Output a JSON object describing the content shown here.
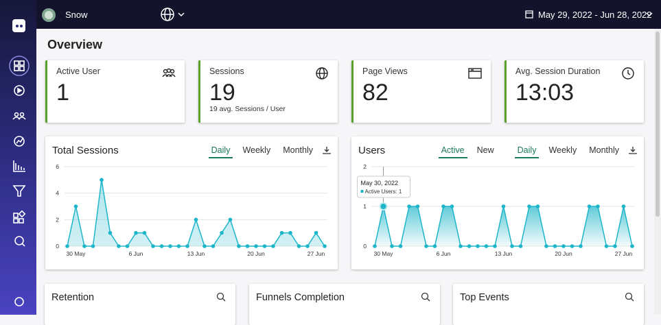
{
  "topbar": {
    "user": "Snow",
    "date_range": "May 29, 2022 - Jun 28, 2022"
  },
  "page_title": "Overview",
  "stats": [
    {
      "label": "Active User",
      "value": 1
    },
    {
      "label": "Sessions",
      "value": 19,
      "sub": "19 avg. Sessions / User"
    },
    {
      "label": "Page Views",
      "value": 82
    },
    {
      "label": "Avg. Session Duration",
      "value": "13:03"
    }
  ],
  "chart_data": [
    {
      "type": "area",
      "title": "Total Sessions",
      "tabs": [
        "Daily",
        "Weekly",
        "Monthly"
      ],
      "color": "#1cb5c9",
      "categories": [
        null,
        "30 May",
        null,
        null,
        null,
        null,
        null,
        null,
        "6 Jun",
        null,
        null,
        null,
        null,
        null,
        null,
        "13 Jun",
        null,
        null,
        null,
        null,
        null,
        null,
        "20 Jun",
        null,
        null,
        null,
        null,
        null,
        null,
        "27 Jun",
        null
      ],
      "values": [
        0,
        3,
        0,
        0,
        5,
        1,
        0,
        0,
        1,
        1,
        0,
        0,
        0,
        0,
        0,
        2,
        0,
        0,
        1,
        2,
        0,
        0,
        0,
        0,
        0,
        1,
        1,
        0,
        0,
        1,
        0
      ],
      "ylim": [
        0,
        6
      ],
      "yticks": [
        0,
        2,
        4,
        6
      ],
      "grid": true
    },
    {
      "type": "area",
      "title": "Users",
      "filters": [
        "Active",
        "New"
      ],
      "tabs": [
        "Daily",
        "Weekly",
        "Monthly"
      ],
      "color": "#1cb5c9",
      "categories": [
        null,
        "30 May",
        null,
        null,
        null,
        null,
        null,
        null,
        "6 Jun",
        null,
        null,
        null,
        null,
        null,
        null,
        "13 Jun",
        null,
        null,
        null,
        null,
        null,
        null,
        "20 Jun",
        null,
        null,
        null,
        null,
        null,
        null,
        "27 Jun",
        null
      ],
      "values": [
        0,
        1,
        0,
        0,
        1,
        1,
        0,
        0,
        1,
        1,
        0,
        0,
        0,
        0,
        0,
        1,
        0,
        0,
        1,
        1,
        0,
        0,
        0,
        0,
        0,
        1,
        1,
        0,
        0,
        1,
        0
      ],
      "ylim": [
        0,
        2
      ],
      "yticks": [
        0,
        1,
        2
      ],
      "grid": true,
      "tooltip": {
        "title": "May 30, 2022",
        "text": "Active Users: 1"
      }
    }
  ],
  "bottom_cards": [
    "Retention",
    "Funnels Completion",
    "Top Events"
  ]
}
